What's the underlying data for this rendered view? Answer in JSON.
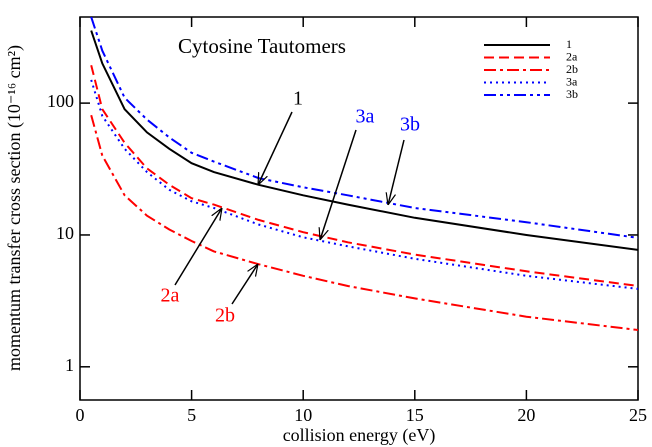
{
  "chart_data": {
    "type": "line",
    "title": "Cytosine Tautomers",
    "x_label": "collision energy (eV)",
    "y_label": "momentum transfer cross section (10⁻¹⁶ cm²)",
    "x": [
      0.5,
      1,
      2,
      3,
      4,
      5,
      6,
      8,
      10,
      12,
      15,
      20,
      25
    ],
    "series": [
      {
        "name": "1",
        "color": "#000000",
        "dash": "solid",
        "values": [
          355,
          200,
          90,
          60,
          45,
          35,
          30,
          24,
          20,
          17,
          13.5,
          10,
          7.7
        ]
      },
      {
        "name": "2a",
        "color": "#ff0000",
        "dash": "dashed",
        "values": [
          194,
          90,
          50,
          32,
          24,
          19,
          17,
          13,
          10.5,
          8.8,
          7.1,
          5.3,
          4.1
        ]
      },
      {
        "name": "2b",
        "color": "#ff0000",
        "dash": "dashdot",
        "values": [
          81,
          40,
          20,
          14,
          11,
          9,
          7.5,
          6,
          4.9,
          4.1,
          3.3,
          2.4,
          1.9
        ]
      },
      {
        "name": "3a",
        "color": "#0000ff",
        "dash": "dotted",
        "values": [
          150,
          80,
          45,
          30,
          22,
          18,
          16,
          12,
          9.6,
          8.2,
          6.6,
          4.9,
          3.9
        ]
      },
      {
        "name": "3b",
        "color": "#0000ff",
        "dash": "dashdotdot",
        "values": [
          450,
          250,
          110,
          75,
          55,
          42,
          36,
          27,
          23,
          20,
          16,
          12.5,
          9.5
        ]
      }
    ],
    "annotations": [
      "1",
      "3a",
      "3b",
      "2a",
      "2b"
    ],
    "xlim": [
      0,
      25
    ],
    "xticks": [
      0,
      5,
      10,
      15,
      20,
      25
    ],
    "ylim": [
      0.56,
      450
    ],
    "yticks": [
      1,
      10,
      100
    ],
    "log_y": true,
    "legend": "upper right"
  }
}
